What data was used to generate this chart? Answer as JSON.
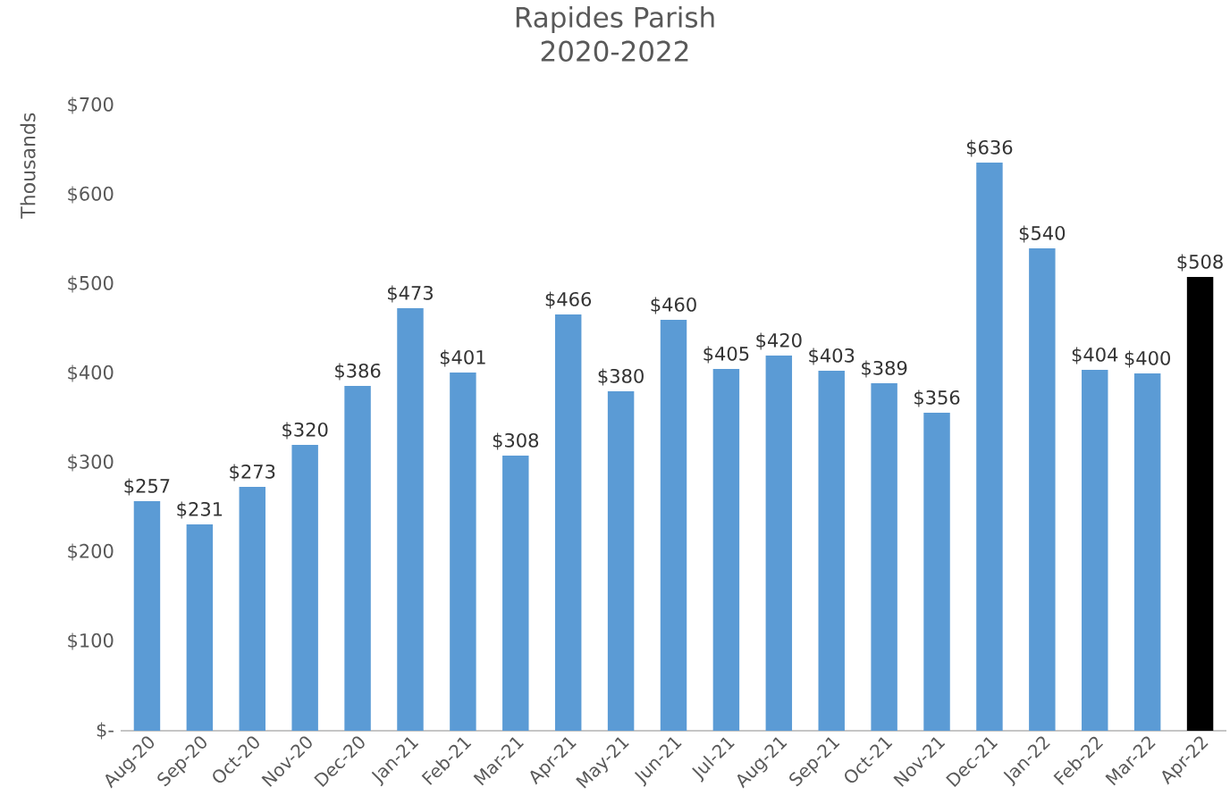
{
  "chart_data": {
    "type": "bar",
    "title": "Rapides Parish",
    "subtitle": "2020-2022",
    "ylabel": "Thousands",
    "categories": [
      "Aug-20",
      "Sep-20",
      "Oct-20",
      "Nov-20",
      "Dec-20",
      "Jan-21",
      "Feb-21",
      "Mar-21",
      "Apr-21",
      "May-21",
      "Jun-21",
      "Jul-21",
      "Aug-21",
      "Sep-21",
      "Oct-21",
      "Nov-21",
      "Dec-21",
      "Jan-22",
      "Feb-22",
      "Mar-22",
      "Apr-22"
    ],
    "values": [
      257,
      231,
      273,
      320,
      386,
      473,
      401,
      308,
      466,
      380,
      460,
      405,
      420,
      403,
      389,
      356,
      636,
      540,
      404,
      400,
      508
    ],
    "value_labels": [
      "$257",
      "$231",
      "$273",
      "$320",
      "$386",
      "$473",
      "$401",
      "$308",
      "$466",
      "$380",
      "$460",
      "$405",
      "$420",
      "$403",
      "$389",
      "$356",
      "$636",
      "$540",
      "$404",
      "$400",
      "$508"
    ],
    "colors": [
      "#5b9bd5",
      "#5b9bd5",
      "#5b9bd5",
      "#5b9bd5",
      "#5b9bd5",
      "#5b9bd5",
      "#5b9bd5",
      "#5b9bd5",
      "#5b9bd5",
      "#5b9bd5",
      "#5b9bd5",
      "#5b9bd5",
      "#5b9bd5",
      "#5b9bd5",
      "#5b9bd5",
      "#5b9bd5",
      "#5b9bd5",
      "#5b9bd5",
      "#5b9bd5",
      "#5b9bd5",
      "#000000"
    ],
    "ylim": [
      0,
      700
    ],
    "yticks": [
      {
        "value": 0,
        "label": "$-"
      },
      {
        "value": 100,
        "label": "$100"
      },
      {
        "value": 200,
        "label": "$200"
      },
      {
        "value": 300,
        "label": "$300"
      },
      {
        "value": 400,
        "label": "$400"
      },
      {
        "value": 500,
        "label": "$500"
      },
      {
        "value": 600,
        "label": "$600"
      },
      {
        "value": 700,
        "label": "$700"
      }
    ]
  }
}
